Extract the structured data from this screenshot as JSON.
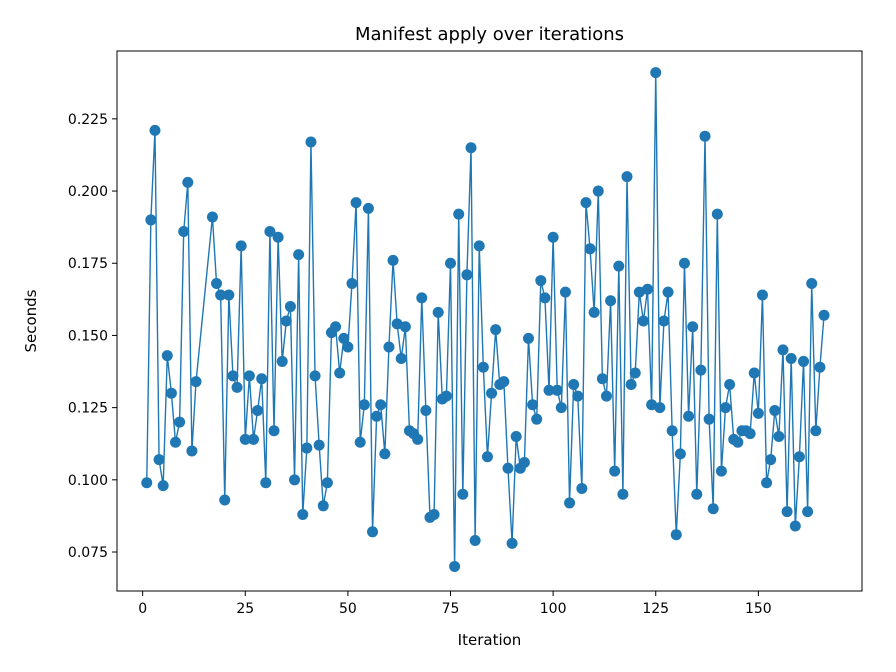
{
  "chart_data": {
    "type": "line",
    "title": "Manifest apply over iterations",
    "xlabel": "Iteration",
    "ylabel": "Seconds",
    "xlim": [
      -6.25,
      175.25
    ],
    "ylim": [
      0.0615,
      0.2485
    ],
    "xticks": [
      0,
      25,
      50,
      75,
      100,
      125,
      150
    ],
    "yticks": [
      0.075,
      0.1,
      0.125,
      0.15,
      0.175,
      0.2,
      0.225
    ],
    "ytick_labels": [
      "0.075",
      "0.100",
      "0.125",
      "0.150",
      "0.175",
      "0.200",
      "0.225"
    ],
    "grid": false,
    "legend": "none",
    "series_color": "#1f77b4",
    "x": [
      1,
      2,
      3,
      4,
      5,
      6,
      7,
      8,
      9,
      10,
      11,
      12,
      13,
      17,
      18,
      19,
      20,
      21,
      22,
      23,
      24,
      25,
      26,
      27,
      28,
      29,
      30,
      31,
      32,
      33,
      34,
      35,
      36,
      37,
      38,
      39,
      40,
      41,
      42,
      43,
      44,
      45,
      46,
      47,
      48,
      49,
      50,
      51,
      52,
      53,
      54,
      55,
      56,
      57,
      58,
      59,
      60,
      61,
      62,
      63,
      64,
      65,
      66,
      67,
      68,
      69,
      70,
      71,
      72,
      73,
      74,
      75,
      76,
      77,
      78,
      79,
      80,
      81,
      82,
      83,
      84,
      85,
      86,
      87,
      88,
      89,
      90,
      91,
      92,
      93,
      94,
      95,
      96,
      97,
      98,
      99,
      100,
      101,
      102,
      103,
      104,
      105,
      106,
      107,
      108,
      109,
      110,
      111,
      112,
      113,
      114,
      115,
      116,
      117,
      118,
      119,
      120,
      121,
      122,
      123,
      124,
      125,
      126,
      127,
      128,
      129,
      130,
      131,
      132,
      133,
      134,
      135,
      136,
      137,
      138,
      139,
      140,
      141,
      142,
      143,
      144,
      145,
      146,
      147,
      148,
      149,
      150,
      151,
      152,
      153,
      154,
      155,
      156,
      157,
      158,
      159,
      160,
      161,
      162,
      163,
      164,
      165,
      166
    ],
    "y": [
      0.099,
      0.19,
      0.221,
      0.107,
      0.098,
      0.143,
      0.13,
      0.113,
      0.12,
      0.186,
      0.203,
      0.11,
      0.134,
      0.191,
      0.168,
      0.164,
      0.093,
      0.164,
      0.136,
      0.132,
      0.181,
      0.114,
      0.136,
      0.114,
      0.124,
      0.135,
      0.099,
      0.186,
      0.117,
      0.184,
      0.141,
      0.155,
      0.16,
      0.1,
      0.178,
      0.088,
      0.111,
      0.217,
      0.136,
      0.112,
      0.091,
      0.099,
      0.151,
      0.153,
      0.137,
      0.149,
      0.146,
      0.168,
      0.196,
      0.113,
      0.126,
      0.194,
      0.082,
      0.122,
      0.126,
      0.109,
      0.146,
      0.176,
      0.154,
      0.142,
      0.153,
      0.117,
      0.116,
      0.114,
      0.163,
      0.124,
      0.087,
      0.088,
      0.158,
      0.128,
      0.129,
      0.175,
      0.07,
      0.192,
      0.095,
      0.171,
      0.215,
      0.079,
      0.181,
      0.139,
      0.108,
      0.13,
      0.152,
      0.133,
      0.134,
      0.104,
      0.078,
      0.115,
      0.104,
      0.106,
      0.149,
      0.126,
      0.121,
      0.169,
      0.163,
      0.131,
      0.184,
      0.131,
      0.125,
      0.165,
      0.092,
      0.133,
      0.129,
      0.097,
      0.196,
      0.18,
      0.158,
      0.2,
      0.135,
      0.129,
      0.162,
      0.103,
      0.174,
      0.095,
      0.205,
      0.133,
      0.137,
      0.165,
      0.155,
      0.166,
      0.126,
      0.241,
      0.125,
      0.155,
      0.165,
      0.117,
      0.081,
      0.109,
      0.175,
      0.122,
      0.153,
      0.095,
      0.138,
      0.219,
      0.121,
      0.09,
      0.192,
      0.103,
      0.125,
      0.133,
      0.114,
      0.113,
      0.117,
      0.117,
      0.116,
      0.137,
      0.123,
      0.164,
      0.099,
      0.107,
      0.124,
      0.115,
      0.145,
      0.089,
      0.142,
      0.084,
      0.108,
      0.141,
      0.089,
      0.168,
      0.117,
      0.139,
      0.157
    ]
  }
}
